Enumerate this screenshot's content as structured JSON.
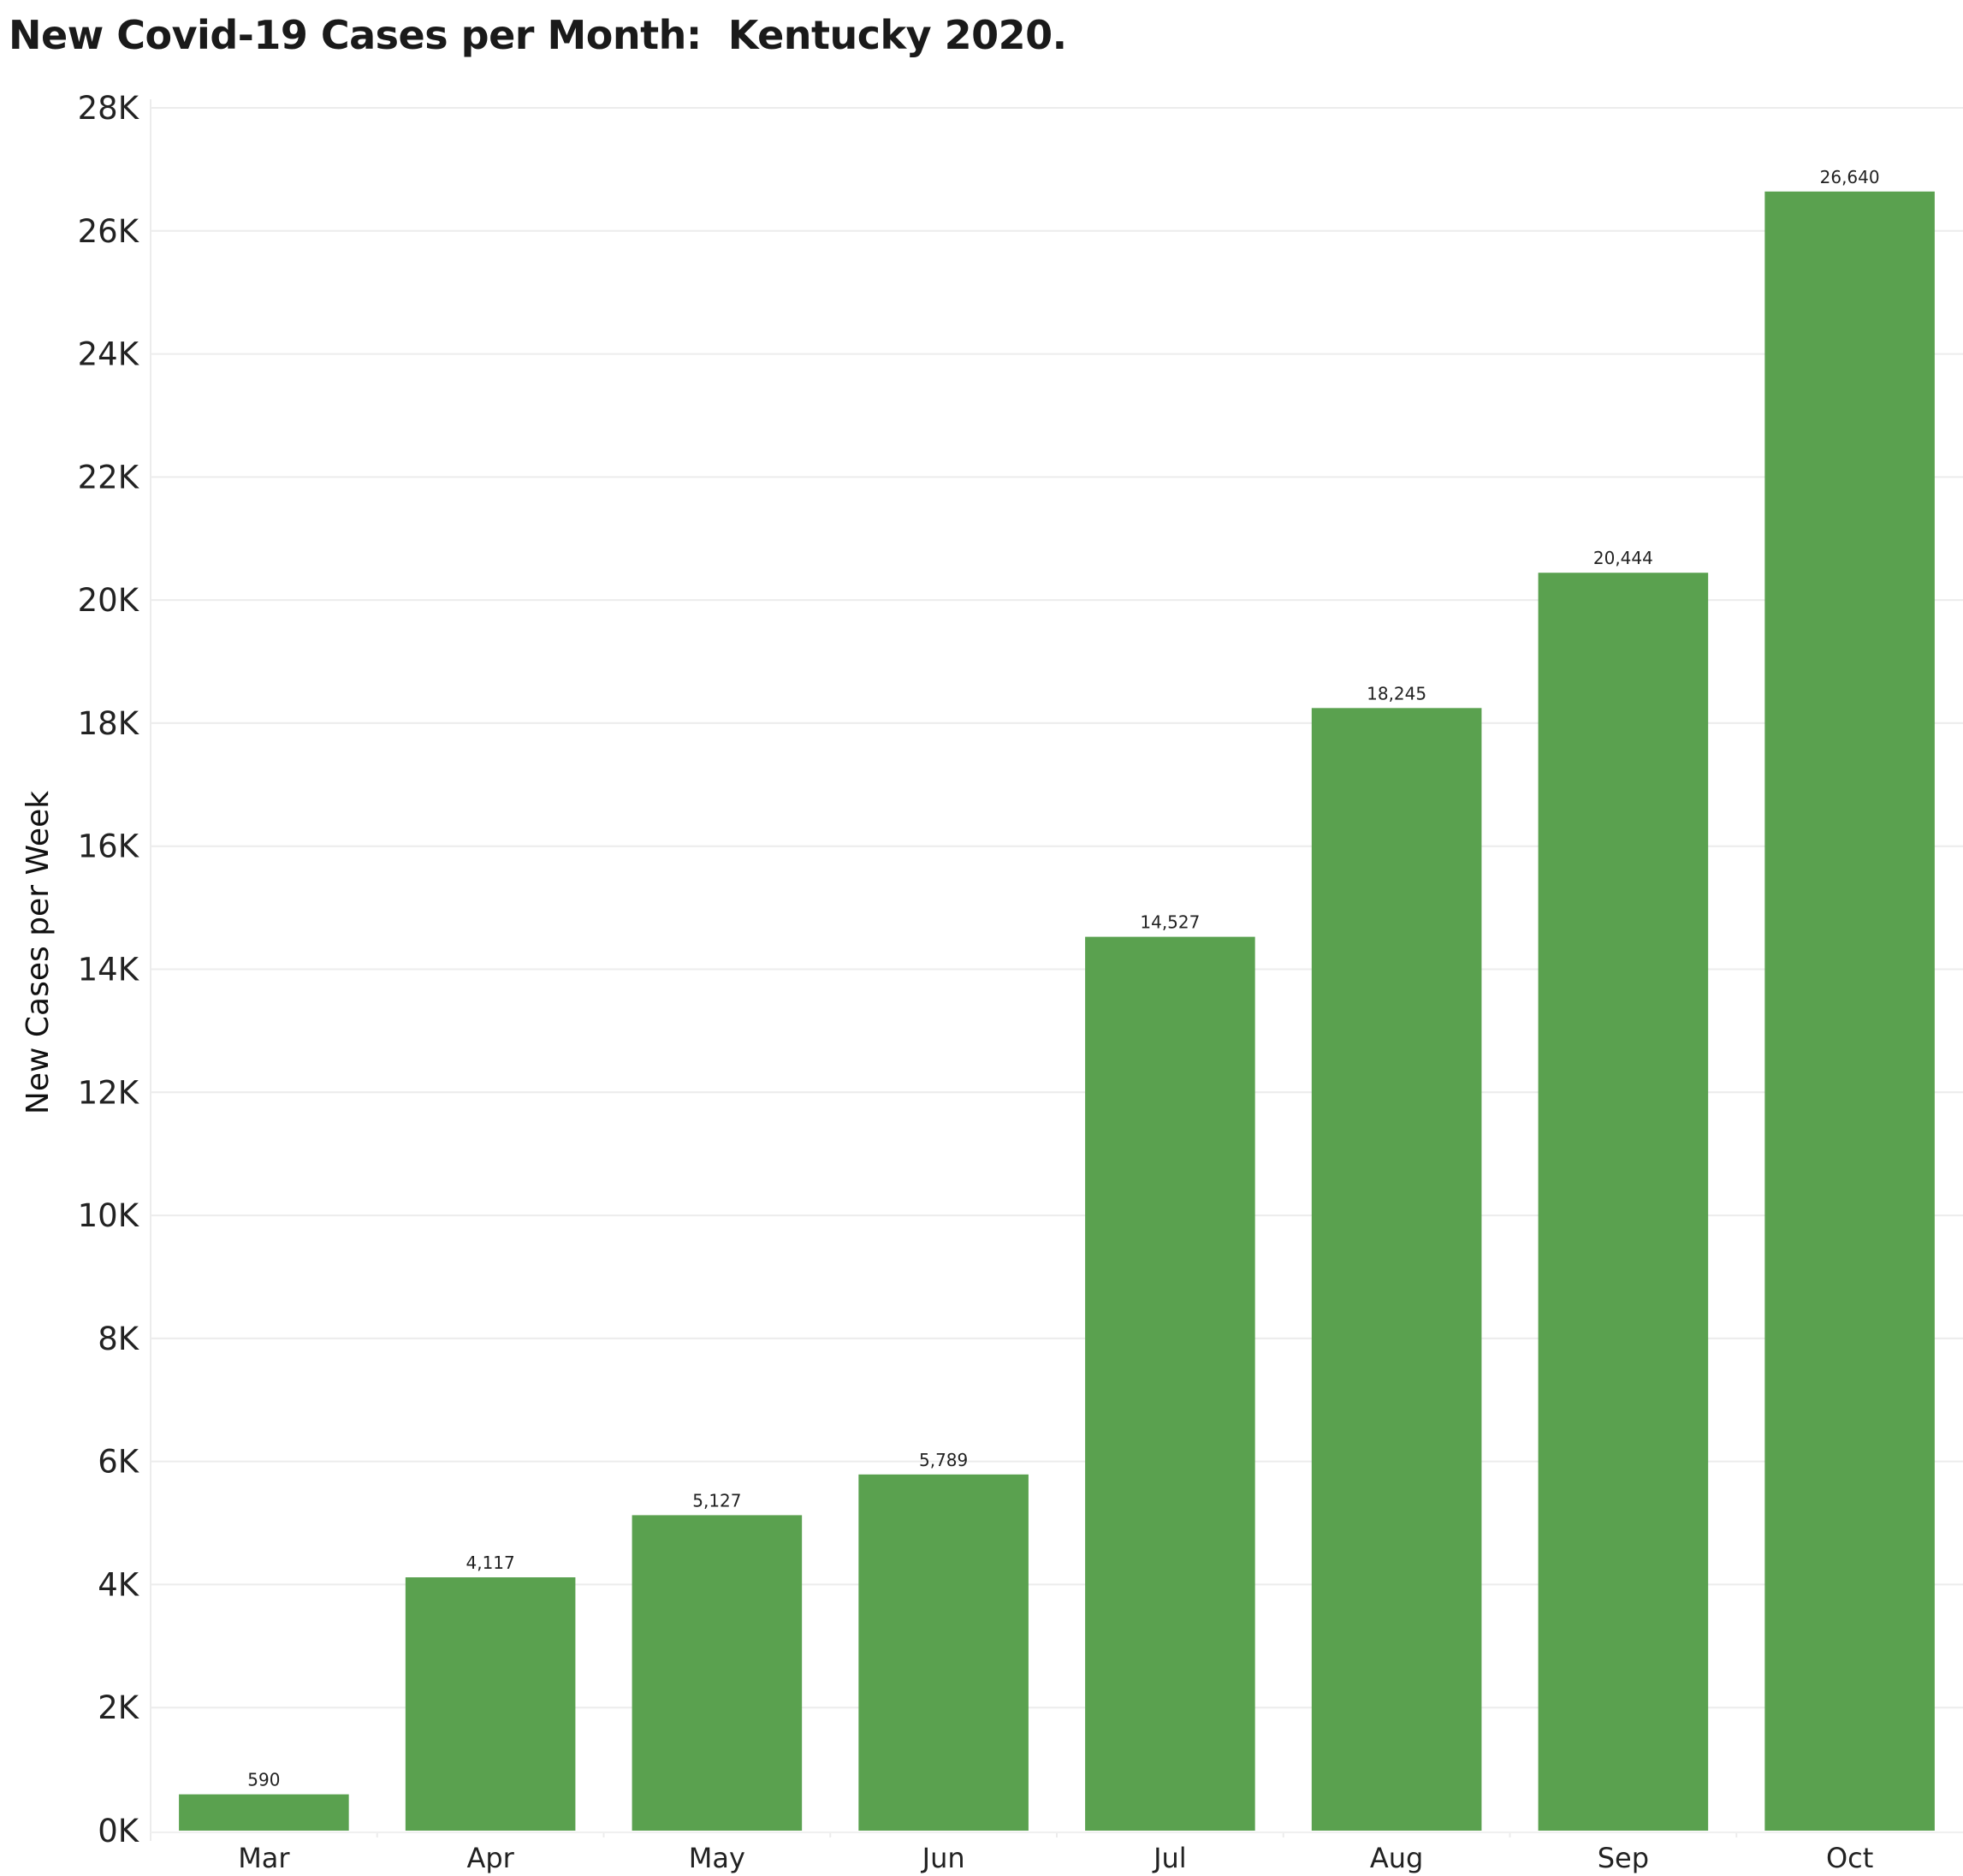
{
  "chart_data": {
    "type": "bar",
    "title": "New Covid-19 Cases per Month:  Kentucky 2020.",
    "xlabel": "",
    "ylabel": "New Cases per Week",
    "categories": [
      "Mar",
      "Apr",
      "May",
      "Jun",
      "Jul",
      "Aug",
      "Sep",
      "Oct"
    ],
    "values": [
      590,
      4117,
      5127,
      5789,
      14527,
      18245,
      20444,
      26640
    ],
    "data_labels": [
      "590",
      "4,117",
      "5,127",
      "5,789",
      "14,527",
      "18,245",
      "20,444",
      "26,640"
    ],
    "ylim": [
      0,
      28000
    ],
    "yticks": [
      0,
      2000,
      4000,
      6000,
      8000,
      10000,
      12000,
      14000,
      16000,
      18000,
      20000,
      22000,
      24000,
      26000,
      28000
    ],
    "ytick_labels": [
      "0K",
      "2K",
      "4K",
      "6K",
      "8K",
      "10K",
      "12K",
      "14K",
      "16K",
      "18K",
      "20K",
      "22K",
      "24K",
      "26K",
      "28K"
    ],
    "grid": true,
    "bar_color": "#5aa14f",
    "gridline_color": "#ececec"
  }
}
